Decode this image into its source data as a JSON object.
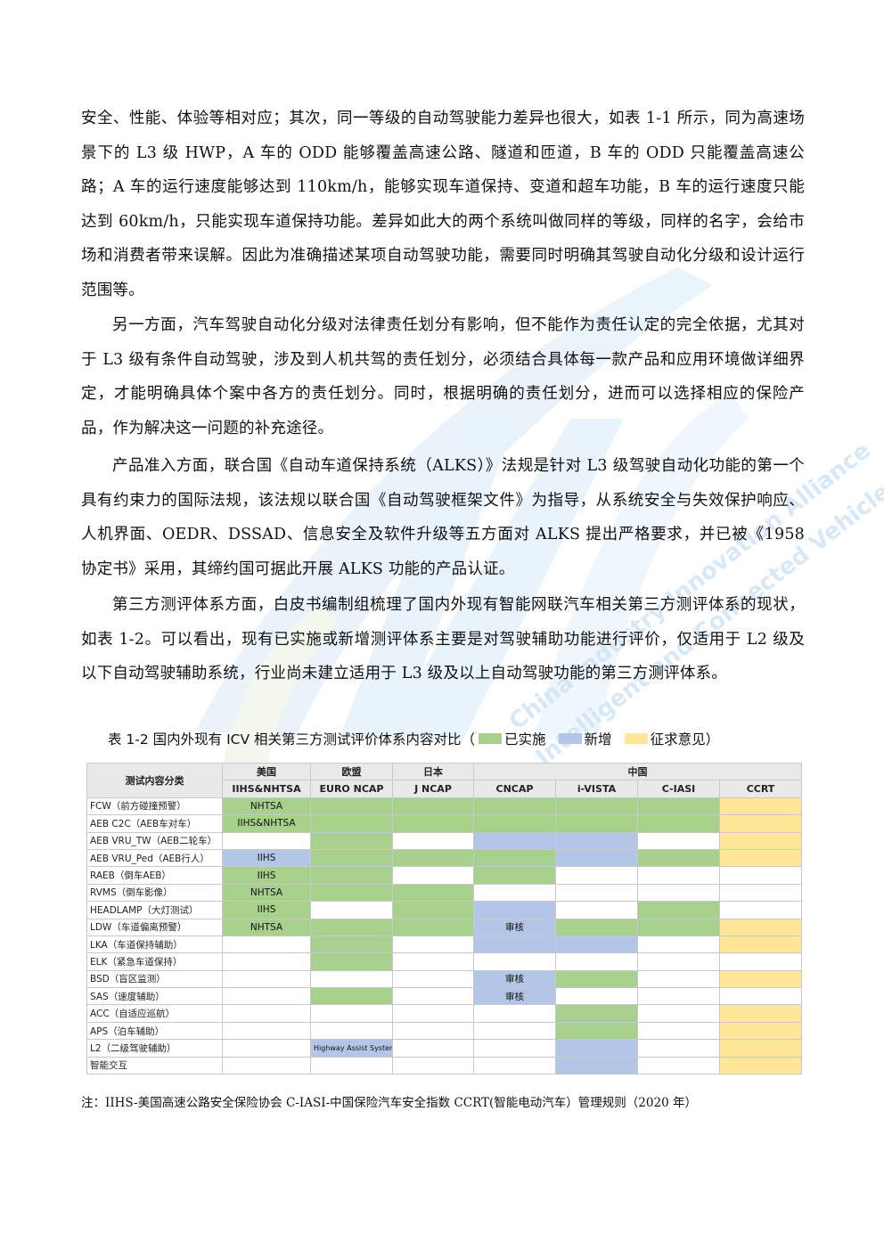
{
  "paragraphs": [
    "安全、性能、体验等相对应；其次，同一等级的自动驾驶能力差异也很大，如表 1-1 所示，同为高速场景下的 L3 级 HWP，A 车的 ODD 能够覆盖高速公路、隧道和匝道，B 车的 ODD 只能覆盖高速公路；A 车的运行速度能够达到 110km/h，能够实现车道保持、变道和超车功能，B 车的运行速度只能达到 60km/h，只能实现车道保持功能。差异如此大的两个系统叫做同样的等级，同样的名字，会给市场和消费者带来误解。因此为准确描述某项自动驾驶功能，需要同时明确其驾驶自动化分级和设计运行范围等。",
    "另一方面，汽车驾驶自动化分级对法律责任划分有影响，但不能作为责任认定的完全依据，尤其对于 L3 级有条件自动驾驶，涉及到人机共驾的责任划分，必须结合具体每一款产品和应用环境做详细界定，才能明确具体个案中各方的责任划分。同时，根据明确的责任划分，进而可以选择相应的保险产品，作为解决这一问题的补充途径。",
    "产品准入方面，联合国《自动车道保持系统（ALKS）》法规是针对 L3 级驾驶自动化功能的第一个具有约束力的国际法规，该法规以联合国《自动驾驶框架文件》为指导，从系统安全与失效保护响应、人机界面、OEDR、DSSAD、信息安全及软件升级等五方面对 ALKS 提出严格要求，并已被《1958 协定书》采用，其缔约国可据此开展 ALKS 功能的产品认证。",
    "第三方测评体系方面，白皮书编制组梳理了国内外现有智能网联汽车相关第三方测评体系的现状，如表 1-2。可以看出，现有已实施或新增测评体系主要是对驾驶辅助功能进行评价，仅适用于 L2 级及以下自动驾驶辅助系统，行业尚未建立适用于 L3 级及以上自动驾驶功能的第三方测评体系。"
  ],
  "caption": {
    "text": "表 1-2  国内外现有 ICV 相关第三方测试评价体系内容对比（",
    "legend": [
      {
        "label": "已实施",
        "color": "#a8d08d"
      },
      {
        "label": "新增",
        "color": "#b4c6e7"
      },
      {
        "label": "征求意见）",
        "color": "#ffe699"
      }
    ]
  },
  "table": {
    "corner": "测试内容分类",
    "regions": [
      "美国",
      "欧盟",
      "日本",
      "中国"
    ],
    "programs": [
      "IIHS&NHTSA",
      "EURO NCAP",
      "J NCAP",
      "CNCAP",
      "i-VISTA",
      "C-IASI",
      "CCRT"
    ],
    "rows": [
      {
        "label": "FCW（前方碰撞预警）",
        "cells": [
          "g:NHTSA",
          "g",
          "g",
          "g",
          "g",
          "g",
          "y"
        ]
      },
      {
        "label": "AEB C2C（AEB车对车）",
        "cells": [
          "g:IIHS&NHTSA",
          "g",
          "g",
          "g",
          "g",
          "g",
          "y"
        ]
      },
      {
        "label": "AEB VRU_TW（AEB二轮车）",
        "cells": [
          "",
          "g",
          "",
          "b",
          "b",
          "",
          "y"
        ]
      },
      {
        "label": "AEB VRU_Ped（AEB行人）",
        "cells": [
          "b:IIHS",
          "g",
          "g",
          "g",
          "b",
          "g",
          "y"
        ]
      },
      {
        "label": "RAEB（倒车AEB）",
        "cells": [
          "g:IIHS",
          "g",
          "",
          "g",
          "",
          "",
          ""
        ]
      },
      {
        "label": "RVMS（倒车影像）",
        "cells": [
          "g:NHTSA",
          "g",
          "g",
          "",
          "",
          "",
          ""
        ]
      },
      {
        "label": "HEADLAMP（大灯测试）",
        "cells": [
          "g:IIHS",
          "",
          "g",
          "b",
          "",
          "g",
          ""
        ]
      },
      {
        "label": "LDW（车道偏离预警）",
        "cells": [
          "g:NHTSA",
          "g",
          "g",
          "b:审核",
          "g",
          "g",
          "y"
        ]
      },
      {
        "label": "LKA（车道保持辅助）",
        "cells": [
          "",
          "g",
          "",
          "b",
          "b",
          "",
          "y"
        ]
      },
      {
        "label": "ELK（紧急车道保持）",
        "cells": [
          "",
          "g",
          "",
          "",
          "",
          "",
          ""
        ]
      },
      {
        "label": "BSD（盲区监测）",
        "cells": [
          "",
          "",
          "",
          "b:审核",
          "g",
          "",
          "y"
        ]
      },
      {
        "label": "SAS（速度辅助）",
        "cells": [
          "",
          "g",
          "",
          "b:审核",
          "",
          "",
          ""
        ]
      },
      {
        "label": "ACC（自适应巡航）",
        "cells": [
          "",
          "",
          "",
          "",
          "g",
          "",
          "y"
        ]
      },
      {
        "label": "APS（泊车辅助）",
        "cells": [
          "",
          "",
          "",
          "",
          "g",
          "",
          "y"
        ]
      },
      {
        "label": "L2（二级驾驶辅助）",
        "cells": [
          "",
          "b:Highway Assist Systems",
          "",
          "",
          "b",
          "",
          "y"
        ]
      },
      {
        "label": "智能交互",
        "cells": [
          "",
          "",
          "",
          "",
          "b",
          "",
          "y"
        ]
      }
    ]
  },
  "note": "注：IIHS-美国高速公路安全保险协会    C-IASI-中国保险汽车安全指数    CCRT(智能电动汽车）管理规则（2020 年）",
  "watermark": {
    "logo": "CICV",
    "text_lines": [
      "China Industry Innovation Alliance",
      "Intelligent and Connected Vehicles"
    ],
    "color": "#cfe3f5"
  }
}
